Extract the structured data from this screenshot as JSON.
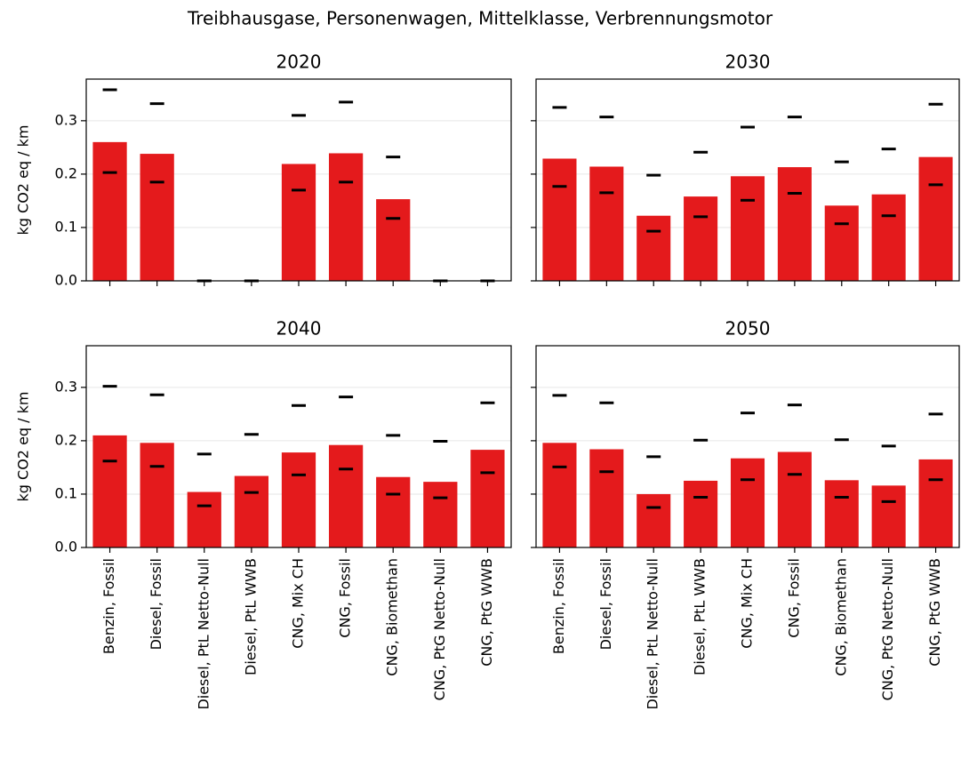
{
  "title": "Treibhausgase, Personenwagen, Mittelklasse, Verbrennungsmotor",
  "ylabel": "kg CO2 eq / km",
  "categories": [
    "Benzin, Fossil",
    "Diesel, Fossil",
    "Diesel, PtL Netto-Null",
    "Diesel, PtL WWB",
    "CNG, Mix CH",
    "CNG, Fossil",
    "CNG, Biomethan",
    "CNG, PtG Netto-Null",
    "CNG, PtG WWB"
  ],
  "ylim": [
    0,
    0.378
  ],
  "yticks": [
    {
      "value": 0,
      "label": "0.0"
    },
    0.1,
    0.2,
    0.3
  ],
  "grid": true,
  "color": "#e41a1c",
  "chart_data": [
    {
      "type": "bar",
      "title": "2020",
      "values": [
        0.26,
        0.238,
        0,
        0,
        0.219,
        0.239,
        0.153,
        0,
        0
      ],
      "low": [
        0.203,
        0.185,
        0,
        0,
        0.17,
        0.185,
        0.117,
        0,
        0
      ],
      "high": [
        0.358,
        0.332,
        0,
        0,
        0.31,
        0.335,
        0.232,
        0,
        0
      ]
    },
    {
      "type": "bar",
      "title": "2030",
      "values": [
        0.229,
        0.214,
        0.122,
        0.158,
        0.196,
        0.213,
        0.141,
        0.162,
        0.232
      ],
      "low": [
        0.177,
        0.165,
        0.093,
        0.12,
        0.151,
        0.164,
        0.107,
        0.122,
        0.18
      ],
      "high": [
        0.325,
        0.307,
        0.198,
        0.241,
        0.288,
        0.307,
        0.223,
        0.247,
        0.331
      ]
    },
    {
      "type": "bar",
      "title": "2040",
      "values": [
        0.21,
        0.196,
        0.104,
        0.134,
        0.178,
        0.192,
        0.132,
        0.123,
        0.183
      ],
      "low": [
        0.162,
        0.152,
        0.078,
        0.103,
        0.136,
        0.147,
        0.1,
        0.093,
        0.14
      ],
      "high": [
        0.302,
        0.286,
        0.175,
        0.212,
        0.266,
        0.282,
        0.21,
        0.199,
        0.271
      ]
    },
    {
      "type": "bar",
      "title": "2050",
      "values": [
        0.196,
        0.184,
        0.1,
        0.125,
        0.167,
        0.179,
        0.126,
        0.116,
        0.165
      ],
      "low": [
        0.151,
        0.142,
        0.075,
        0.094,
        0.127,
        0.137,
        0.094,
        0.086,
        0.127
      ],
      "high": [
        0.285,
        0.271,
        0.17,
        0.201,
        0.252,
        0.267,
        0.202,
        0.19,
        0.25
      ]
    }
  ]
}
